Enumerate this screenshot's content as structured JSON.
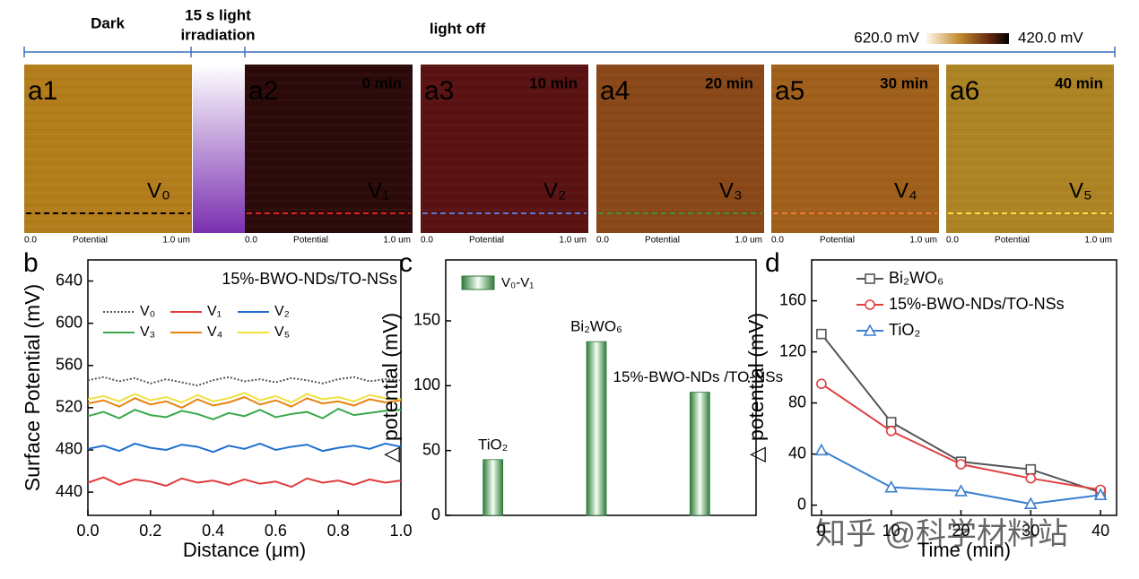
{
  "images": {
    "dark": "Dark",
    "irradiation": [
      "15 s light",
      "irradiation"
    ],
    "light_off": "light off",
    "colorbar": {
      "high": "620.0 mV",
      "low": "420.0 mV"
    },
    "scan_axis": {
      "start": "0.0",
      "name": "Potential",
      "end": "1.0 um"
    },
    "panels": [
      {
        "label": "a1",
        "line_label": "V₀",
        "color": "#000000"
      },
      {
        "label": "a2",
        "time": "0 min",
        "line_label": "V₁",
        "color": "#e02020"
      },
      {
        "label": "a3",
        "time": "10 min",
        "line_label": "V₂",
        "color": "#5a78d8"
      },
      {
        "label": "a4",
        "time": "20 min",
        "line_label": "V₃",
        "color": "#3f8f3a"
      },
      {
        "label": "a5",
        "time": "30 min",
        "line_label": "V₄",
        "color": "#f07a30"
      },
      {
        "label": "a6",
        "time": "40 min",
        "line_label": "V₅",
        "color": "#f5e040"
      }
    ]
  },
  "watermark": "知乎 @科学材料站",
  "chart_data": [
    {
      "type": "line",
      "panel": "b",
      "annotation": "15%-BWO-NDs/TO-NSs",
      "x_label": "Distance (μm)",
      "y_label": "Surface Potential (mV)",
      "x": [
        0,
        0.05,
        0.1,
        0.15,
        0.2,
        0.25,
        0.3,
        0.35,
        0.4,
        0.45,
        0.5,
        0.55,
        0.6,
        0.65,
        0.7,
        0.75,
        0.8,
        0.85,
        0.9,
        0.95,
        1.0
      ],
      "xlim": [
        0,
        1
      ],
      "xticks": [
        {
          "value": 0,
          "label": "0.0"
        },
        0.2,
        0.4,
        0.6,
        0.8,
        {
          "value": 1,
          "label": "1.0"
        }
      ],
      "ylim": [
        418,
        660
      ],
      "yticks": [
        440,
        480,
        520,
        560,
        600,
        640
      ],
      "series": [
        {
          "name": "V₀",
          "color": "#555555",
          "style": "dotted",
          "values": [
            546,
            549,
            545,
            548,
            543,
            547,
            544,
            541,
            546,
            549,
            545,
            547,
            544,
            548,
            546,
            543,
            547,
            549,
            545,
            547,
            546
          ]
        },
        {
          "name": "V₁",
          "color": "#e03c3c",
          "values": [
            449,
            454,
            447,
            452,
            450,
            446,
            453,
            449,
            451,
            447,
            452,
            448,
            450,
            445,
            453,
            449,
            451,
            447,
            452,
            449,
            451
          ]
        },
        {
          "name": "V₂",
          "color": "#1f6fd0",
          "values": [
            481,
            484,
            479,
            486,
            482,
            480,
            485,
            483,
            478,
            484,
            481,
            486,
            480,
            483,
            485,
            479,
            482,
            484,
            481,
            486,
            483
          ]
        },
        {
          "name": "V₃",
          "color": "#3aa84a",
          "values": [
            512,
            516,
            510,
            518,
            513,
            511,
            517,
            514,
            509,
            515,
            512,
            518,
            511,
            514,
            516,
            510,
            519,
            513,
            515,
            517,
            518
          ]
        },
        {
          "name": "V₄",
          "color": "#e8820e",
          "values": [
            524,
            527,
            521,
            529,
            523,
            526,
            520,
            528,
            522,
            525,
            530,
            523,
            527,
            521,
            529,
            524,
            526,
            522,
            528,
            525,
            527
          ]
        },
        {
          "name": "V₅",
          "color": "#f0e040",
          "values": [
            528,
            531,
            526,
            533,
            527,
            530,
            525,
            532,
            526,
            529,
            534,
            527,
            531,
            525,
            533,
            528,
            530,
            526,
            532,
            529,
            528
          ]
        }
      ]
    },
    {
      "type": "bar",
      "panel": "c",
      "y_label": "△ potential (mV)",
      "legend": "V₀-V₁",
      "color": "#2f7a3a",
      "categories": [
        "TiO₂",
        "Bi₂WO₆",
        "15%-BWO-NDs /TO-NSs"
      ],
      "values": [
        43,
        134,
        95
      ],
      "ylim": [
        0,
        197
      ],
      "yticks": [
        0,
        50,
        100,
        150
      ]
    },
    {
      "type": "line",
      "panel": "d",
      "x_label": "Time (min)",
      "y_label": "△ potential (mV)",
      "x": [
        0,
        10,
        20,
        30,
        40
      ],
      "xlim": [
        -1.4,
        42.3
      ],
      "xticks": [
        0,
        10,
        20,
        30,
        40
      ],
      "ylim": [
        -8,
        192
      ],
      "yticks": [
        0,
        40,
        80,
        120,
        160
      ],
      "series": [
        {
          "name": "Bi₂WO₆",
          "color": "#555555",
          "marker": "square",
          "values": [
            134,
            65,
            34,
            28,
            10
          ]
        },
        {
          "name": "15%-BWO-NDs/TO-NSs",
          "color": "#e04040",
          "marker": "circle",
          "values": [
            95,
            58,
            32,
            21,
            12
          ]
        },
        {
          "name": "TiO₂",
          "color": "#3a7fd0",
          "marker": "triangle",
          "values": [
            43,
            14,
            11,
            1,
            8
          ]
        }
      ]
    }
  ]
}
